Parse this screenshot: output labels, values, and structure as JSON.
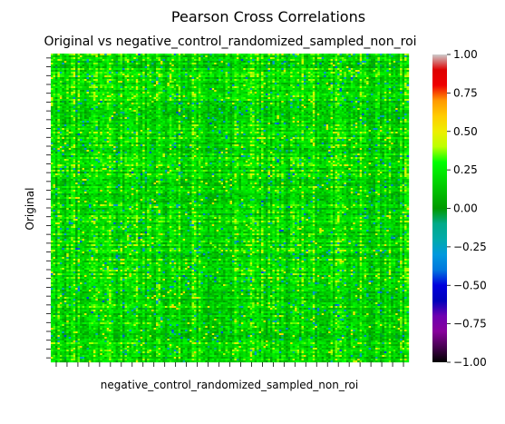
{
  "figure": {
    "suptitle": "Pearson Cross Correlations"
  },
  "chart_data": {
    "type": "heatmap",
    "title": "Original vs negative_control_randomized_sampled_non_roi",
    "xlabel": "negative_control_randomized_sampled_non_roi",
    "ylabel": "Original",
    "x_tick_labels_visible": false,
    "y_tick_labels_visible": false,
    "colormap": "nipy_spectral",
    "colorbar": {
      "vmin": -1.0,
      "vmax": 1.0,
      "ticks": [
        -1.0,
        -0.75,
        -0.5,
        -0.25,
        0.0,
        0.25,
        0.5,
        0.75,
        1.0
      ],
      "tick_labels": [
        "−1.00",
        "−0.75",
        "−0.50",
        "−0.25",
        "0.00",
        "0.25",
        "0.50",
        "0.75",
        "1.00"
      ],
      "stops": [
        {
          "value": 0.0,
          "color": "#000000"
        },
        {
          "value": 0.05,
          "color": "#470051"
        },
        {
          "value": 0.1,
          "color": "#87009b"
        },
        {
          "value": 0.15,
          "color": "#6e00b1"
        },
        {
          "value": 0.2,
          "color": "#0000bb"
        },
        {
          "value": 0.25,
          "color": "#0000dd"
        },
        {
          "value": 0.3,
          "color": "#0077dd"
        },
        {
          "value": 0.35,
          "color": "#0099dd"
        },
        {
          "value": 0.4,
          "color": "#00aaaa"
        },
        {
          "value": 0.45,
          "color": "#00aa88"
        },
        {
          "value": 0.5,
          "color": "#009900"
        },
        {
          "value": 0.55,
          "color": "#00bb00"
        },
        {
          "value": 0.6,
          "color": "#00dd00"
        },
        {
          "value": 0.65,
          "color": "#00ff00"
        },
        {
          "value": 0.7,
          "color": "#bbff00"
        },
        {
          "value": 0.75,
          "color": "#eeee00"
        },
        {
          "value": 0.8,
          "color": "#ffcc00"
        },
        {
          "value": 0.85,
          "color": "#ff9900"
        },
        {
          "value": 0.9,
          "color": "#ee0000"
        },
        {
          "value": 0.95,
          "color": "#dd0000"
        },
        {
          "value": 1.0,
          "color": "#cccccc"
        }
      ]
    },
    "matrix_summary": {
      "dominant_value_range": [
        0.1,
        0.4
      ],
      "occasional_value_range": [
        -0.6,
        0.6
      ],
      "description_note": "dense noisy matrix, mostly green with yellow and blue speckles"
    },
    "grid": false
  }
}
